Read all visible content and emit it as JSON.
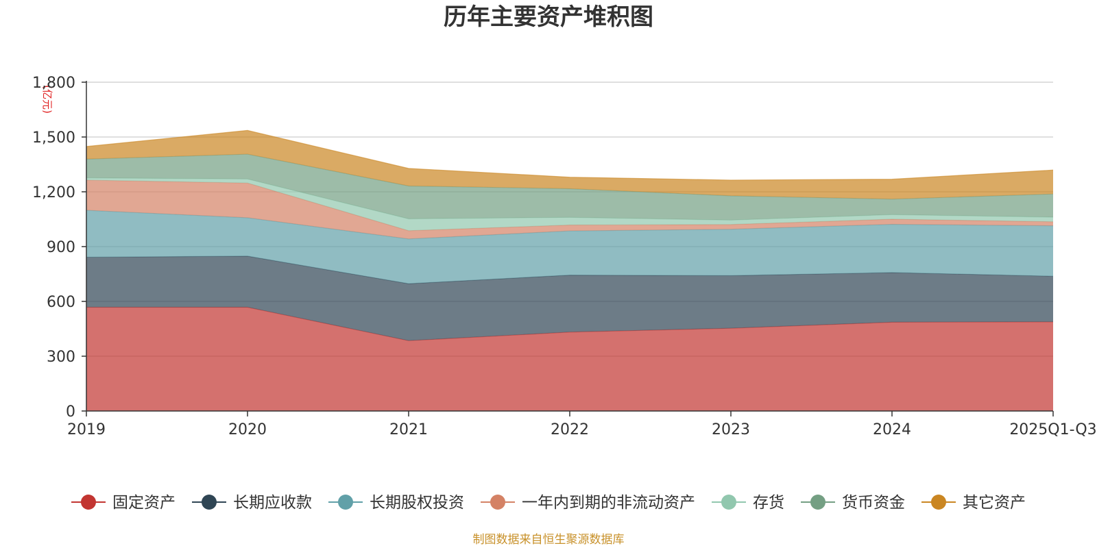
{
  "chart_data": {
    "type": "area",
    "stacked": true,
    "title": "历年主要资产堆积图",
    "unit_label": "(亿元)",
    "categories": [
      "2019",
      "2020",
      "2021",
      "2022",
      "2023",
      "2024",
      "2025Q1-Q3"
    ],
    "ylim": [
      0,
      1800
    ],
    "yticks": [
      0,
      300,
      600,
      900,
      1200,
      1500,
      1800
    ],
    "ytick_labels": [
      "0",
      "300",
      "600",
      "900",
      "1,200",
      "1,500",
      "1,800"
    ],
    "grid": true,
    "legend_position": "bottom",
    "series": [
      {
        "name": "固定资产",
        "color": "#c23531",
        "values": [
          568,
          568,
          385,
          432,
          453,
          486,
          488
        ]
      },
      {
        "name": "长期应收款",
        "color": "#2f4554",
        "values": [
          274,
          280,
          312,
          312,
          288,
          272,
          250
        ]
      },
      {
        "name": "长期股权投资",
        "color": "#61a0a8",
        "values": [
          257,
          210,
          245,
          242,
          254,
          264,
          276
        ]
      },
      {
        "name": "一年内到期的非流动资产",
        "color": "#d48265",
        "values": [
          165,
          190,
          45,
          32,
          26,
          28,
          22
        ]
      },
      {
        "name": "存货",
        "color": "#91c7ae",
        "values": [
          12,
          22,
          65,
          42,
          24,
          25,
          25
        ]
      },
      {
        "name": "货币资金",
        "color": "#749f83",
        "values": [
          103,
          136,
          180,
          157,
          133,
          85,
          127
        ]
      },
      {
        "name": "其它资产",
        "color": "#ca8622",
        "values": [
          69,
          130,
          96,
          63,
          86,
          109,
          131
        ]
      }
    ]
  },
  "source_text": "制图数据来自恒生聚源数据库"
}
